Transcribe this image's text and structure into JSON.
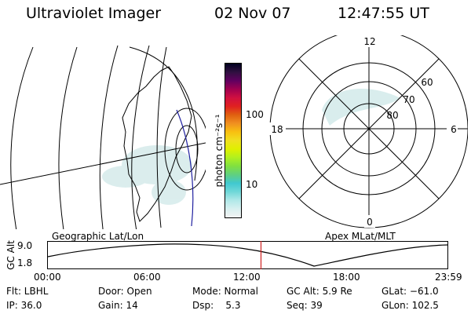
{
  "header": {
    "instrument": "Ultraviolet Imager",
    "date": "02 Nov 07",
    "time": "12:47:55 UT"
  },
  "colorbar": {
    "unit_label": "photon cm⁻²s⁻¹",
    "ticks": [
      "100",
      "10"
    ],
    "colors": [
      "#f2f2f2",
      "#d8f0f0",
      "#b0e8e8",
      "#70d8d8",
      "#40c8d0",
      "#60d080",
      "#80e040",
      "#b0f020",
      "#e0f000",
      "#f0e020",
      "#f8c010",
      "#f09020",
      "#e06010",
      "#e02020",
      "#d01040",
      "#a00050",
      "#600060",
      "#301040",
      "#000020"
    ]
  },
  "geographic_view": {
    "label": "Geographic Lat/Lon",
    "line_color": "#000000",
    "coast_color": "#000000",
    "track_color": "#2020a0"
  },
  "polar_view": {
    "label": "Apex MLat/MLT",
    "mlt_labels": {
      "top": "12",
      "right": "6",
      "bottom": "0",
      "left": "18"
    },
    "lat_labels": [
      "60",
      "70",
      "80"
    ]
  },
  "altitude_plot": {
    "ylabel": "GC Alt",
    "yticks": [
      "9.0",
      "1.8"
    ],
    "xticks": [
      "00:00",
      "06:00",
      "12:00",
      "18:00",
      "23:59"
    ],
    "marker_color": "#d02020",
    "current_hour": 12.8
  },
  "status": {
    "filter": "Flt: LBHL",
    "ip": "IP: 36.0",
    "door": "Door: Open",
    "gain": "Gain: 14",
    "mode": "Mode: Normal",
    "dsp": "Dsp:    5.3",
    "gc_alt": "GC Alt: 5.9 Re",
    "seq": "Seq: 39",
    "glat": "GLat: −61.0",
    "glon": "GLon: 102.5"
  }
}
